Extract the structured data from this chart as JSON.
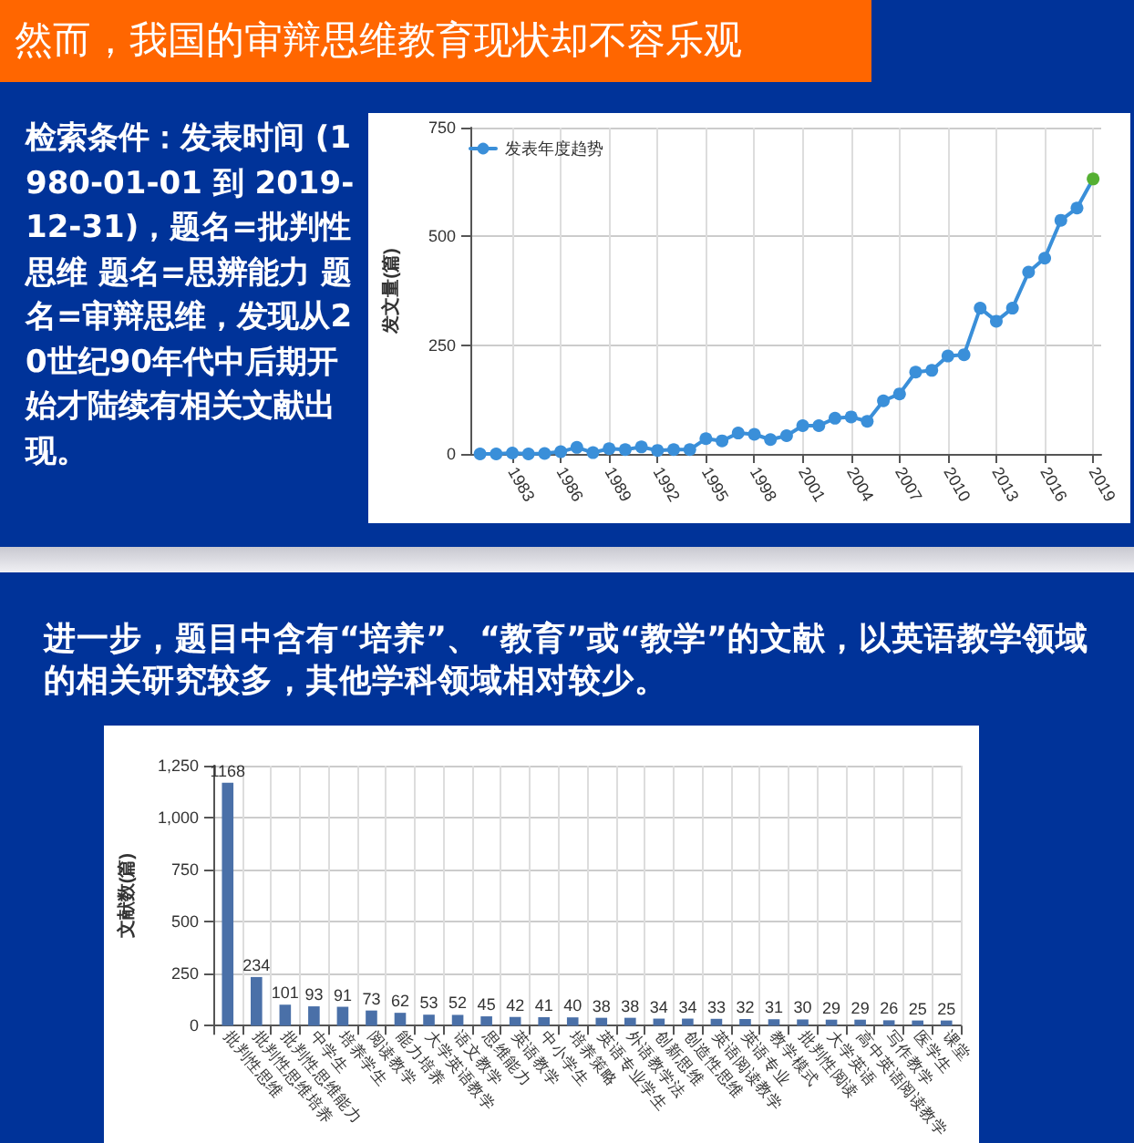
{
  "chart_data": [
    {
      "type": "line",
      "title": "然而，我国的审辩思维教育现状却不容乐观",
      "annotations": [
        "检索条件：发表时间 (1980-01-01 到 2019-12-31)，题名=批判性思维 题名=思辨能力 题名=审辩思维，发现从20世纪90年代中后期开始才陆续有相关文献出现。"
      ],
      "ylabel": "发文量(篇)",
      "x": [
        1981,
        1982,
        1983,
        1984,
        1985,
        1986,
        1987,
        1988,
        1989,
        1990,
        1991,
        1992,
        1993,
        1994,
        1995,
        1996,
        1997,
        1998,
        1999,
        2000,
        2001,
        2002,
        2003,
        2004,
        2005,
        2006,
        2007,
        2008,
        2009,
        2010,
        2011,
        2012,
        2013,
        2014,
        2015,
        2016,
        2017,
        2018,
        2019
      ],
      "series": [
        {
          "name": "发表年度趋势",
          "color": "#3a8fd9",
          "colors": [
            "#3a8fd9",
            "#3a8fd9",
            "#3a8fd9",
            "#3a8fd9",
            "#3a8fd9",
            "#3a8fd9",
            "#3a8fd9",
            "#3a8fd9",
            "#3a8fd9",
            "#3a8fd9",
            "#3a8fd9",
            "#3a8fd9",
            "#3a8fd9",
            "#3a8fd9",
            "#3a8fd9",
            "#3a8fd9",
            "#3a8fd9",
            "#3a8fd9",
            "#3a8fd9",
            "#3a8fd9",
            "#3a8fd9",
            "#3a8fd9",
            "#3a8fd9",
            "#3a8fd9",
            "#3a8fd9",
            "#3a8fd9",
            "#3a8fd9",
            "#3a8fd9",
            "#3a8fd9",
            "#3a8fd9",
            "#3a8fd9",
            "#3a8fd9",
            "#3a8fd9",
            "#3a8fd9",
            "#3a8fd9",
            "#3a8fd9",
            "#3a8fd9",
            "#3a8fd9",
            "#55b032"
          ],
          "values": [
            0,
            0,
            2,
            0,
            1,
            5,
            15,
            3,
            12,
            10,
            16,
            8,
            10,
            10,
            35,
            30,
            48,
            45,
            33,
            42,
            65,
            65,
            82,
            85,
            75,
            122,
            138,
            188,
            192,
            225,
            228,
            335,
            305,
            335,
            418,
            450,
            537,
            565,
            632
          ]
        }
      ],
      "xlim": [
        1980.4,
        2019.5
      ],
      "xticks": [
        1983,
        1986,
        1989,
        1992,
        1995,
        1998,
        2001,
        2004,
        2007,
        2010,
        2013,
        2016,
        2019
      ],
      "ylim": [
        0,
        750
      ],
      "yticks": [
        0,
        250,
        500,
        750
      ],
      "grid": true,
      "legend": "top left",
      "marker": "circle",
      "line_style": "solid"
    },
    {
      "type": "bar",
      "title": "进一步，题目中含有“培养”、“教育”或“教学”的文献，以英语教学领域的相关研究较多，其他学科领域相对较少。",
      "ylabel": "文献数(篇)",
      "categories": [
        "批判性思维",
        "批判性思维培养",
        "批判性思维能力",
        "中学生",
        "培养学生",
        "阅读教学",
        "能力培养",
        "大学英语教学",
        "语文教学",
        "思维能力",
        "英语教学",
        "中小学生",
        "培养策略",
        "英语专业学生",
        "外语教学法",
        "创新思维",
        "创造性思维",
        "英语阅读教学",
        "英语专业",
        "教学模式",
        "批判性阅读",
        "大学英语",
        "高中英语阅读教学",
        "写作教学",
        "医学生",
        "课堂"
      ],
      "values": [
        1168,
        234,
        101,
        93,
        91,
        73,
        62,
        53,
        52,
        45,
        42,
        41,
        40,
        38,
        38,
        34,
        34,
        33,
        32,
        31,
        30,
        29,
        29,
        26,
        25,
        25
      ],
      "color": "#4a70a8",
      "data_labels": true,
      "ylim": [
        0,
        1250
      ],
      "yticks": [
        0,
        250,
        500,
        750,
        {
          "value": 1000,
          "label": "1,000"
        },
        {
          "value": 1250,
          "label": "1,250"
        }
      ],
      "grid": true
    }
  ]
}
